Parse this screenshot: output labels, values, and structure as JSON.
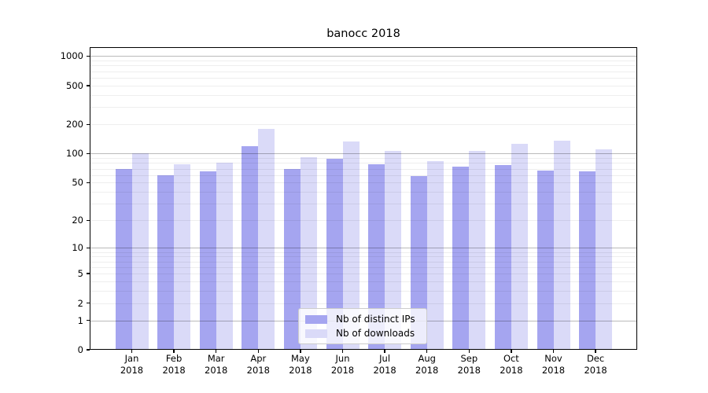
{
  "chart_data": {
    "type": "bar",
    "title": "banocc 2018",
    "categories": [
      "Jan",
      "Feb",
      "Mar",
      "Apr",
      "May",
      "Jun",
      "Jul",
      "Aug",
      "Sep",
      "Oct",
      "Nov",
      "Dec"
    ],
    "category_second_line": "2018",
    "series": [
      {
        "name": "Nb of distinct IPs",
        "color": "#a5a5f0",
        "values": [
          69,
          60,
          65,
          120,
          70,
          89,
          77,
          59,
          74,
          76,
          67,
          65
        ]
      },
      {
        "name": "Nb of downloads",
        "color": "#dadaf8",
        "values": [
          100,
          78,
          80,
          180,
          92,
          134,
          106,
          83,
          106,
          127,
          135,
          111
        ]
      }
    ],
    "y_axis": {
      "scale": "log10(1+x)",
      "ticks": [
        0,
        1,
        2,
        5,
        10,
        20,
        50,
        100,
        200,
        500,
        1000
      ],
      "major_gridlines": [
        1,
        10,
        100,
        1000
      ],
      "minor_gridlines": [
        2,
        3,
        4,
        5,
        6,
        7,
        8,
        9,
        20,
        30,
        40,
        50,
        60,
        70,
        80,
        90,
        200,
        300,
        400,
        500,
        600,
        700,
        800,
        900
      ],
      "range": [
        0,
        1000
      ]
    },
    "legend": {
      "position": "bottom-center"
    },
    "colors": {
      "major_grid": "rgba(0,0,0,0.27)",
      "minor_grid": "rgba(0,0,0,0.065)",
      "axis": "#000000",
      "background": "#ffffff"
    }
  }
}
